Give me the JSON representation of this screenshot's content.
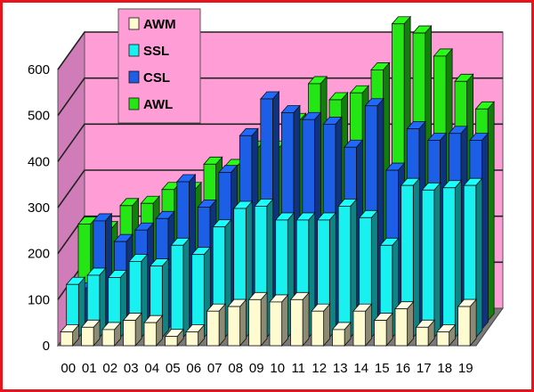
{
  "chart_data": {
    "type": "bar",
    "title": "",
    "xlabel": "",
    "ylabel": "",
    "ylim": [
      0,
      600
    ],
    "yticks": [
      0,
      100,
      200,
      300,
      400,
      500,
      600
    ],
    "categories": [
      "00",
      "01",
      "02",
      "03",
      "04",
      "05",
      "06",
      "07",
      "08",
      "09",
      "10",
      "11",
      "12",
      "13",
      "14",
      "15",
      "16",
      "17",
      "18",
      "19"
    ],
    "grid": true,
    "legend_position": "top-left",
    "three_d": true,
    "series": [
      {
        "name": "AWM",
        "color": "#fffbd0",
        "values": [
          30,
          40,
          35,
          55,
          50,
          20,
          30,
          75,
          85,
          100,
          95,
          100,
          75,
          35,
          75,
          55,
          80,
          40,
          30,
          85
        ]
      },
      {
        "name": "SSL",
        "color": "#19f0f0",
        "values": [
          115,
          135,
          130,
          165,
          155,
          200,
          180,
          240,
          280,
          285,
          255,
          255,
          255,
          285,
          260,
          200,
          330,
          320,
          325,
          330
        ]
      },
      {
        "name": "CSL",
        "color": "#1c5fe6",
        "values": [
          85,
          235,
          190,
          215,
          240,
          320,
          265,
          340,
          420,
          500,
          470,
          455,
          445,
          395,
          485,
          345,
          435,
          410,
          425,
          410
        ]
      },
      {
        "name": "AWL",
        "color": "#23e614",
        "values": [
          210,
          200,
          250,
          255,
          285,
          285,
          340,
          335,
          375,
          375,
          435,
          515,
          480,
          495,
          545,
          645,
          625,
          575,
          520,
          460
        ]
      }
    ]
  }
}
